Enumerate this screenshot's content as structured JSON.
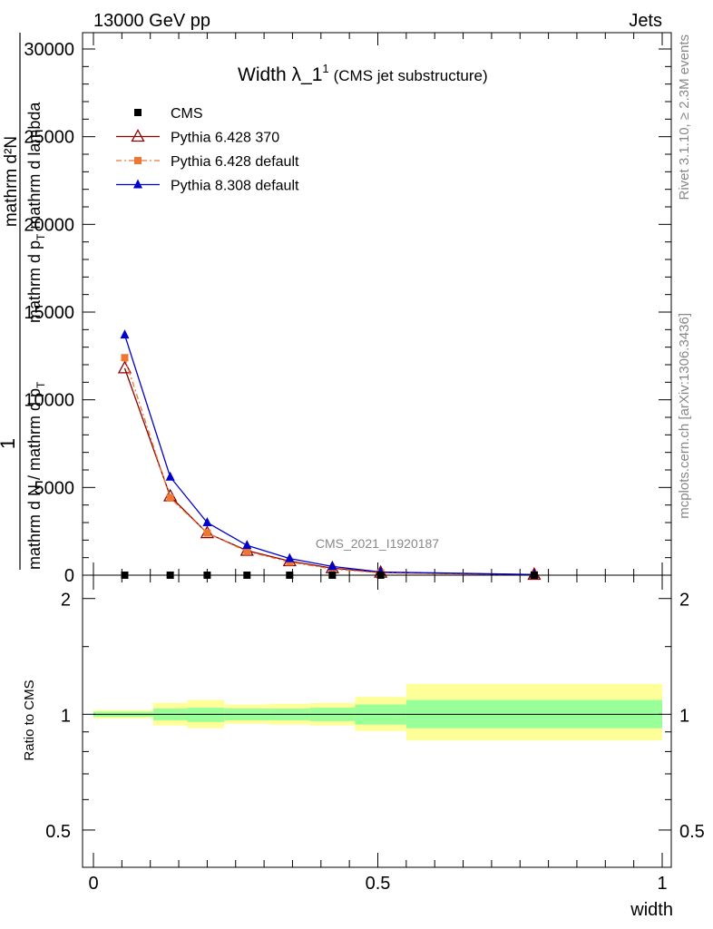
{
  "header": {
    "energy_label": "13000 GeV pp",
    "process_label": "Jets"
  },
  "side_labels": {
    "rivet": "Rivet 3.1.10, ≥ 2.3M events",
    "mcplots": "mcplots.cern.ch [arXiv:1306.3436]"
  },
  "chart_data": [
    {
      "type": "line",
      "title": "Width λ_1",
      "title_sup": "1",
      "subtitle": "(CMS jet substructure)",
      "watermark": "CMS_2021_I1920187",
      "ylabel_parts": [
        "1",
        "mathrm d N / mathrm d p",
        "T",
        "mathrm d²N",
        "mathrm d p",
        "T",
        "mathrm d lambda"
      ],
      "xlabel": "width",
      "xlim": [
        0,
        1
      ],
      "ylim": [
        0,
        30000
      ],
      "y_ticks": [
        0,
        5000,
        10000,
        15000,
        20000,
        25000,
        30000
      ],
      "y_tick_labels": [
        "0",
        "5000",
        "10000",
        "15000",
        "20000",
        "25000",
        "30000"
      ],
      "legend_position": "top-left",
      "series": [
        {
          "name": "CMS",
          "color": "#000000",
          "marker": "square",
          "x": [
            0.055,
            0.135,
            0.2,
            0.27,
            0.345,
            0.42,
            0.505,
            0.775
          ],
          "y": [
            0,
            0,
            0,
            0,
            0,
            0,
            0,
            0
          ]
        },
        {
          "name": "Pythia 6.428 370",
          "color": "#8b0000",
          "marker": "open-triangle",
          "x": [
            0.055,
            0.135,
            0.2,
            0.27,
            0.345,
            0.42,
            0.505,
            0.775
          ],
          "y": [
            11800,
            4500,
            2400,
            1400,
            800,
            400,
            150,
            30
          ]
        },
        {
          "name": "Pythia 6.428 default",
          "color": "#ee7733",
          "marker": "square",
          "x": [
            0.055,
            0.135,
            0.2,
            0.27,
            0.345,
            0.42,
            0.505,
            0.775
          ],
          "y": [
            12400,
            4400,
            2400,
            1350,
            750,
            350,
            130,
            30
          ]
        },
        {
          "name": "Pythia 8.308 default",
          "color": "#0000cc",
          "marker": "filled-triangle",
          "x": [
            0.055,
            0.135,
            0.2,
            0.27,
            0.345,
            0.42,
            0.505,
            0.775
          ],
          "y": [
            13700,
            5600,
            3000,
            1700,
            950,
            500,
            180,
            40
          ]
        }
      ]
    },
    {
      "type": "area",
      "ylabel": "Ratio to CMS",
      "xlabel": "width",
      "xlim": [
        0,
        1
      ],
      "ylim": [
        0.4,
        2.3
      ],
      "y_scale": "log",
      "y_ticks": [
        0.5,
        1,
        2
      ],
      "y_tick_labels": [
        "0.5",
        "1",
        "2"
      ],
      "x_ticks": [
        0,
        0.5,
        1
      ],
      "x_tick_labels": [
        "0",
        "0.5",
        "1"
      ],
      "bins": [
        {
          "x0": 0.0,
          "x1": 0.105,
          "inner": [
            0.985,
            1.015
          ],
          "outer": [
            0.975,
            1.025
          ]
        },
        {
          "x0": 0.105,
          "x1": 0.165,
          "inner": [
            0.965,
            1.035
          ],
          "outer": [
            0.935,
            1.07
          ]
        },
        {
          "x0": 0.165,
          "x1": 0.23,
          "inner": [
            0.955,
            1.04
          ],
          "outer": [
            0.92,
            1.09
          ]
        },
        {
          "x0": 0.23,
          "x1": 0.31,
          "inner": [
            0.965,
            1.035
          ],
          "outer": [
            0.945,
            1.06
          ]
        },
        {
          "x0": 0.31,
          "x1": 0.38,
          "inner": [
            0.965,
            1.035
          ],
          "outer": [
            0.94,
            1.065
          ]
        },
        {
          "x0": 0.38,
          "x1": 0.46,
          "inner": [
            0.96,
            1.04
          ],
          "outer": [
            0.935,
            1.07
          ]
        },
        {
          "x0": 0.46,
          "x1": 0.55,
          "inner": [
            0.94,
            1.06
          ],
          "outer": [
            0.905,
            1.11
          ]
        },
        {
          "x0": 0.55,
          "x1": 1.0,
          "inner": [
            0.92,
            1.09
          ],
          "outer": [
            0.855,
            1.2
          ]
        }
      ],
      "reference_line": 1
    }
  ]
}
